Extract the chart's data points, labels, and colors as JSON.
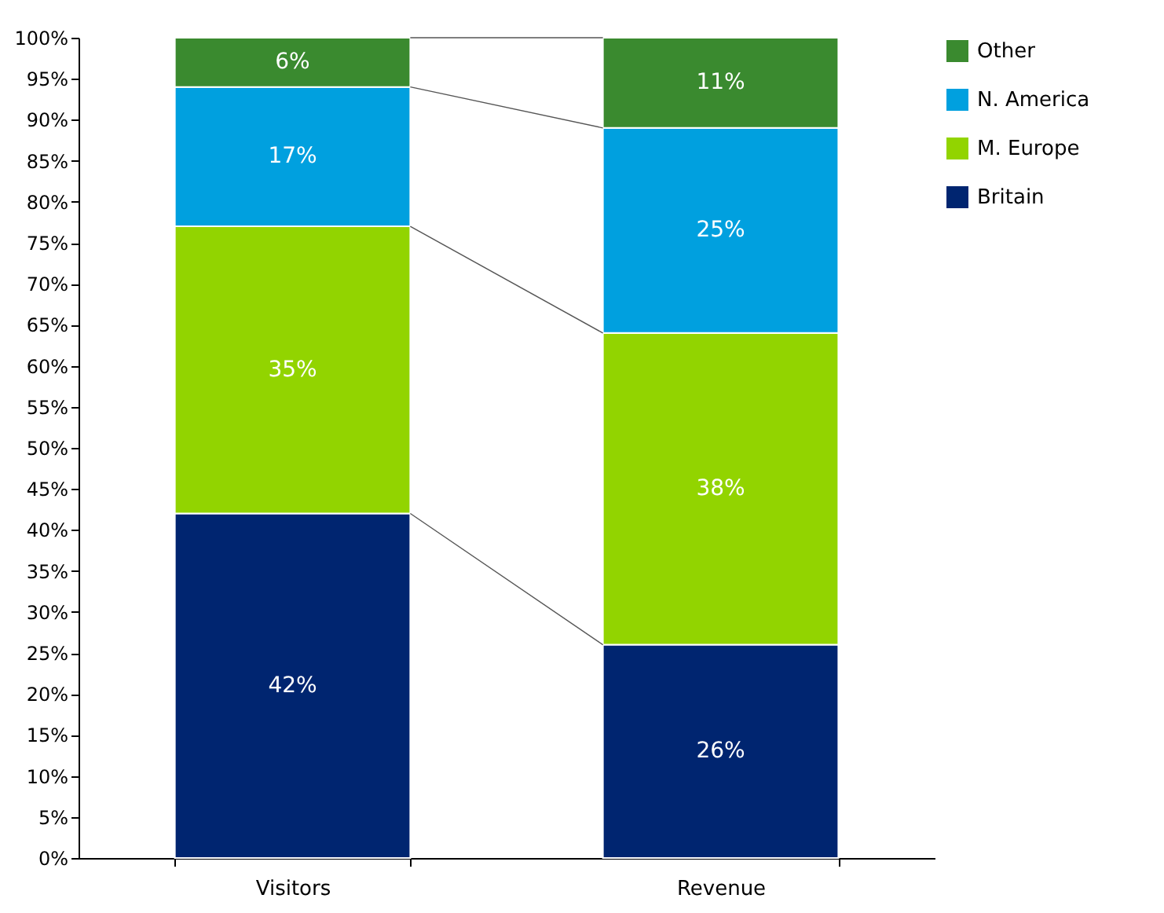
{
  "chart_data": {
    "type": "bar",
    "stacked": true,
    "categories": [
      "Visitors",
      "Revenue"
    ],
    "series": [
      {
        "name": "Britain",
        "color": "#002570",
        "values": [
          42,
          26
        ],
        "value_labels": [
          "42%",
          "26%"
        ]
      },
      {
        "name": "M. Europe",
        "color": "#92d400",
        "values": [
          35,
          38
        ],
        "value_labels": [
          "35%",
          "38%"
        ]
      },
      {
        "name": "N. America",
        "color": "#00a0df",
        "values": [
          17,
          25
        ],
        "value_labels": [
          "17%",
          "25%"
        ]
      },
      {
        "name": "Other",
        "color": "#3a8a2f",
        "values": [
          6,
          11
        ],
        "value_labels": [
          "6%",
          "11%"
        ]
      }
    ],
    "ylim": [
      0,
      100
    ],
    "yticks": [
      {
        "value": 0,
        "label": "0%"
      },
      {
        "value": 5,
        "label": "5%"
      },
      {
        "value": 10,
        "label": "10%"
      },
      {
        "value": 15,
        "label": "15%"
      },
      {
        "value": 20,
        "label": "20%"
      },
      {
        "value": 25,
        "label": "25%"
      },
      {
        "value": 30,
        "label": "30%"
      },
      {
        "value": 35,
        "label": "35%"
      },
      {
        "value": 40,
        "label": "40%"
      },
      {
        "value": 45,
        "label": "45%"
      },
      {
        "value": 50,
        "label": "50%"
      },
      {
        "value": 55,
        "label": "55%"
      },
      {
        "value": 60,
        "label": "60%"
      },
      {
        "value": 65,
        "label": "65%"
      },
      {
        "value": 70,
        "label": "70%"
      },
      {
        "value": 75,
        "label": "75%"
      },
      {
        "value": 80,
        "label": "80%"
      },
      {
        "value": 85,
        "label": "85%"
      },
      {
        "value": 90,
        "label": "90%"
      },
      {
        "value": 95,
        "label": "95%"
      },
      {
        "value": 100,
        "label": "100%"
      }
    ],
    "legend": "right",
    "grid": false
  }
}
